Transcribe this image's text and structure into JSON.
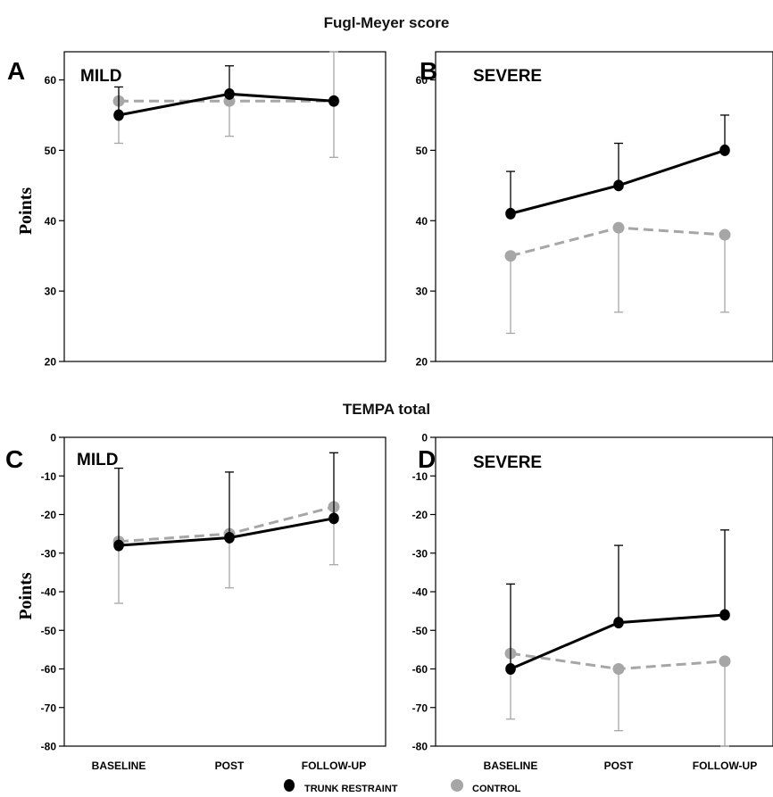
{
  "section_titles": [
    "Fugl-Meyer score",
    "TEMPA total"
  ],
  "legend": [
    {
      "label": "TRUNK RESTRAINT",
      "color": "#000000"
    },
    {
      "label": "CONTROL",
      "color": "#a6a6a6"
    }
  ],
  "colors": {
    "trunk_restraint": "#000000",
    "control": "#a6a6a6"
  },
  "chart_data": [
    {
      "type": "line",
      "panel": "A",
      "title": "MILD",
      "ylabel": "Points",
      "x": [
        "BASELINE",
        "POST",
        "FOLLOW-UP"
      ],
      "xtick_labels_shown": false,
      "ylim": [
        20,
        64
      ],
      "yticks": [
        20,
        30,
        40,
        50,
        60
      ],
      "series": [
        {
          "name": "TRUNK RESTRAINT",
          "style": "solid",
          "values": [
            55,
            58,
            57
          ],
          "error_bars": [
            {
              "dir": "up",
              "value": 59
            },
            {
              "dir": "up",
              "value": 62
            },
            null
          ]
        },
        {
          "name": "CONTROL",
          "style": "dashed",
          "values": [
            57,
            57,
            57
          ],
          "error_bars": [
            {
              "dir": "down",
              "value": 51
            },
            {
              "dir": "down",
              "value": 52
            },
            {
              "dir": "both",
              "low": 49,
              "high": 65
            }
          ]
        }
      ]
    },
    {
      "type": "line",
      "panel": "B",
      "title": "SEVERE",
      "ylabel": "",
      "x": [
        "BASELINE",
        "POST",
        "FOLLOW-UP"
      ],
      "xtick_labels_shown": false,
      "ylim": [
        20,
        64
      ],
      "yticks": [
        20,
        30,
        40,
        50,
        60
      ],
      "series": [
        {
          "name": "TRUNK RESTRAINT",
          "style": "solid",
          "values": [
            41,
            45,
            50
          ],
          "error_bars": [
            {
              "dir": "up",
              "value": 47
            },
            {
              "dir": "up",
              "value": 51
            },
            {
              "dir": "up",
              "value": 55
            }
          ]
        },
        {
          "name": "CONTROL",
          "style": "dashed",
          "values": [
            35,
            39,
            38
          ],
          "error_bars": [
            {
              "dir": "down",
              "value": 24
            },
            {
              "dir": "down",
              "value": 27
            },
            {
              "dir": "down",
              "value": 27
            }
          ]
        }
      ]
    },
    {
      "type": "line",
      "panel": "C",
      "title": "MILD",
      "ylabel": "Points",
      "x": [
        "BASELINE",
        "POST",
        "FOLLOW-UP"
      ],
      "xtick_labels_shown": true,
      "ylim": [
        -80,
        0
      ],
      "yticks": [
        0,
        -10,
        -20,
        -30,
        -40,
        -50,
        -60,
        -70,
        -80
      ],
      "series": [
        {
          "name": "TRUNK RESTRAINT",
          "style": "solid",
          "values": [
            -28,
            -26,
            -21
          ],
          "error_bars": [
            {
              "dir": "up",
              "value": -8
            },
            {
              "dir": "up",
              "value": -9
            },
            {
              "dir": "up",
              "value": -4
            }
          ]
        },
        {
          "name": "CONTROL",
          "style": "dashed",
          "values": [
            -27,
            -25,
            -18
          ],
          "error_bars": [
            {
              "dir": "down",
              "value": -43
            },
            {
              "dir": "down",
              "value": -39
            },
            {
              "dir": "down",
              "value": -33
            }
          ]
        }
      ]
    },
    {
      "type": "line",
      "panel": "D",
      "title": "SEVERE",
      "ylabel": "",
      "x": [
        "BASELINE",
        "POST",
        "FOLLOW-UP"
      ],
      "xtick_labels_shown": true,
      "ylim": [
        -80,
        0
      ],
      "yticks": [
        0,
        -10,
        -20,
        -30,
        -40,
        -50,
        -60,
        -70,
        -80
      ],
      "series": [
        {
          "name": "TRUNK RESTRAINT",
          "style": "solid",
          "values": [
            -60,
            -48,
            -46
          ],
          "error_bars": [
            {
              "dir": "up",
              "value": -38
            },
            {
              "dir": "up",
              "value": -28
            },
            {
              "dir": "up",
              "value": -24
            }
          ]
        },
        {
          "name": "CONTROL",
          "style": "dashed",
          "values": [
            -56,
            -60,
            -58
          ],
          "error_bars": [
            {
              "dir": "down",
              "value": -73
            },
            {
              "dir": "down",
              "value": -76
            },
            {
              "dir": "down",
              "value": -81
            }
          ]
        }
      ]
    }
  ]
}
